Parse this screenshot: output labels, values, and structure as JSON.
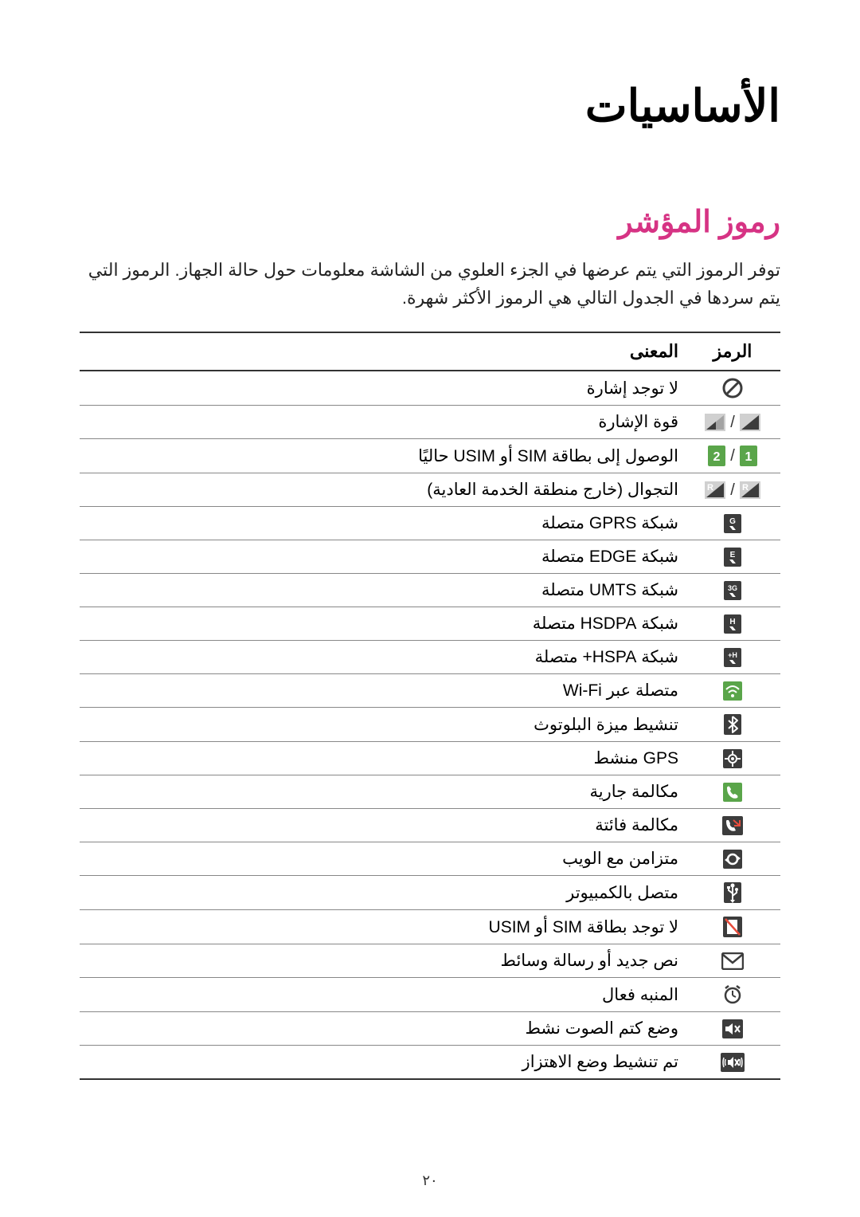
{
  "title": "الأساسيات",
  "section_title": "رموز المؤشر",
  "intro": "توفر الرموز التي يتم عرضها في الجزء العلوي من الشاشة معلومات حول حالة الجهاز. الرموز التي يتم سردها في الجدول التالي هي الرموز الأكثر شهرة.",
  "table_header_icon": "الرمز",
  "table_header_meaning": "المعنى",
  "page_number": "٢٠",
  "colors": {
    "section_heading": "#d63384",
    "icon_dark": "#3c3c3c",
    "icon_green": "#5aa54a",
    "icon_light_bg": "#d0d0d0",
    "icon_white": "#ffffff",
    "border_strong": "#333333",
    "border_light": "#888888"
  },
  "rows": [
    {
      "key": "no-signal",
      "meaning": "لا توجد إشارة"
    },
    {
      "key": "signal-strength",
      "meaning": "قوة الإشارة"
    },
    {
      "key": "sim-access",
      "meaning": "الوصول إلى بطاقة SIM أو USIM حاليًا"
    },
    {
      "key": "roaming",
      "meaning": "التجوال (خارج منطقة الخدمة العادية)"
    },
    {
      "key": "gprs",
      "meaning": "شبكة GPRS متصلة"
    },
    {
      "key": "edge",
      "meaning": "شبكة EDGE متصلة"
    },
    {
      "key": "umts",
      "meaning": "شبكة UMTS متصلة"
    },
    {
      "key": "hsdpa",
      "meaning": "شبكة HSDPA متصلة"
    },
    {
      "key": "hspa-plus",
      "meaning": "شبكة HSPA+ متصلة"
    },
    {
      "key": "wifi",
      "meaning": "متصلة عبر Wi-Fi"
    },
    {
      "key": "bluetooth",
      "meaning": "تنشيط ميزة البلوتوث"
    },
    {
      "key": "gps",
      "meaning": "GPS منشط"
    },
    {
      "key": "call-active",
      "meaning": "مكالمة جارية"
    },
    {
      "key": "missed-call",
      "meaning": "مكالمة فائتة"
    },
    {
      "key": "sync",
      "meaning": "متزامن مع الويب"
    },
    {
      "key": "usb",
      "meaning": "متصل بالكمبيوتر"
    },
    {
      "key": "no-sim",
      "meaning": "لا توجد بطاقة SIM أو USIM"
    },
    {
      "key": "new-message",
      "meaning": "نص جديد أو رسالة وسائط"
    },
    {
      "key": "alarm",
      "meaning": "المنبه فعال"
    },
    {
      "key": "mute",
      "meaning": "وضع كتم الصوت نشط"
    },
    {
      "key": "vibrate",
      "meaning": "تم تنشيط وضع الاهتزاز"
    }
  ]
}
